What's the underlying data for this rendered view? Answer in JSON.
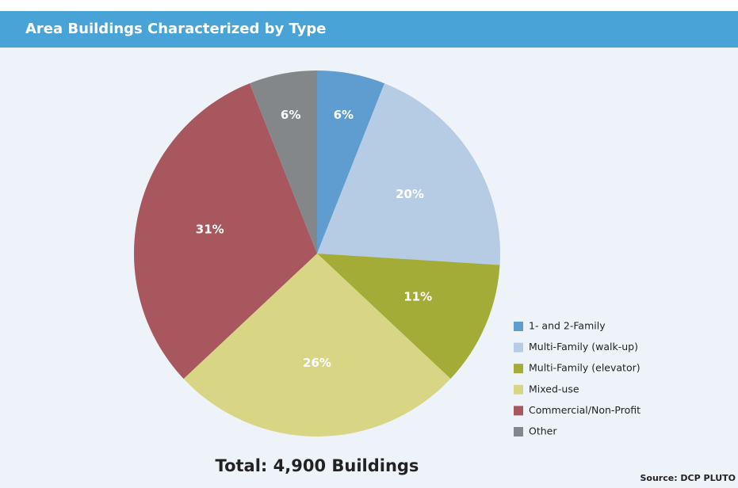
{
  "chart_data": {
    "type": "pie",
    "title": "Area Buildings Characterized by Type",
    "categories": [
      "1- and 2-Family",
      "Multi-Family (walk-up)",
      "Multi-Family (elevator)",
      "Mixed-use",
      "Commercial/Non-Profit",
      "Other"
    ],
    "values": [
      6,
      20,
      11,
      26,
      31,
      6
    ],
    "value_labels": [
      "6%",
      "20%",
      "11%",
      "26%",
      "31%",
      "6%"
    ],
    "colors": [
      "#5f9dd0",
      "#b6cce4",
      "#a3ac36",
      "#d8d684",
      "#a8575f",
      "#848789"
    ],
    "annotations": [
      "Total: 4,900 Buildings",
      "Source: DCP PLUTO"
    ]
  }
}
